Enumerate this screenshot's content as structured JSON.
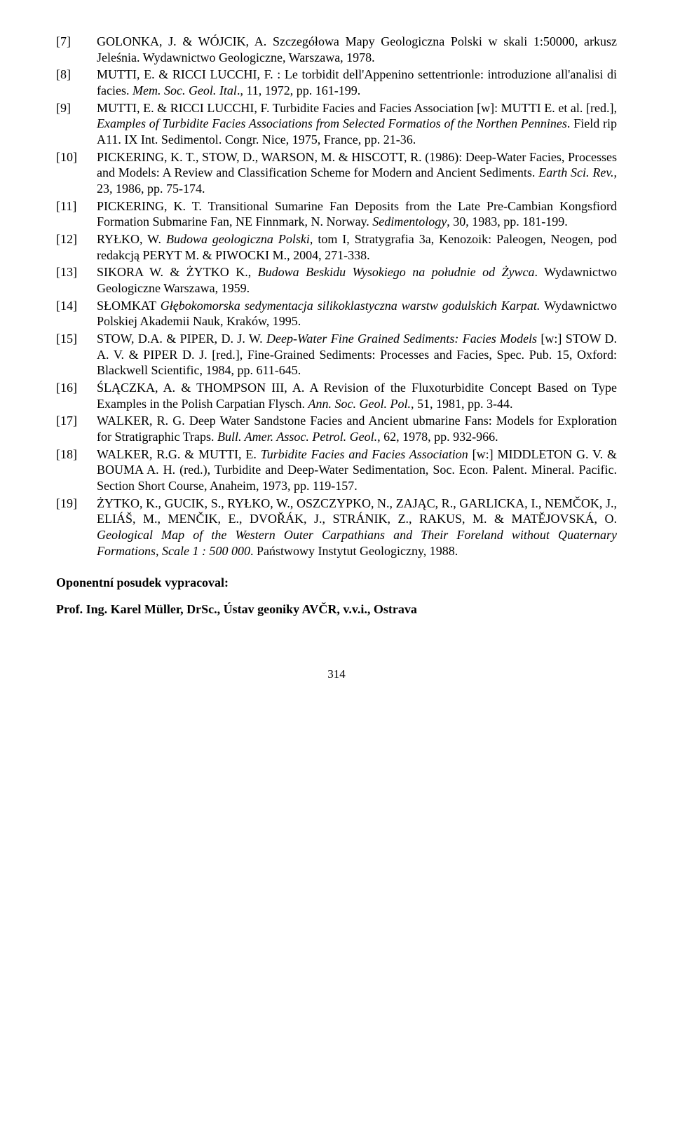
{
  "refs": [
    {
      "n": "[7]",
      "html": "GOLONKA, J. & WÓJCIK, A. Szczegółowa Mapy Geologiczna Polski w skali 1:50000, arkusz Jeleśnia. Wydawnictwo Geologiczne, Warszawa, 1978."
    },
    {
      "n": "[8]",
      "html": "MUTTI, E. & RICCI  LUCCHI, F. : Le torbidit dell'Appenino settentrionle: introduzione all'analisi di facies. <span class=\"i\">Mem. Soc. Geol. Ital</span>., 11, 1972, pp. 161-199."
    },
    {
      "n": "[9]",
      "html": "MUTTI, E. & RICCI LUCCHI, F. Turbidite Facies and Facies Association [w]: MUTTI E. et al. [red.], <span class=\"i\">Examples of Turbidite Facies Associations from Selected Formatios of the Northen Pennines</span>. Field rip A11. IX Int. Sedimentol. Congr. Nice, 1975, France, pp. 21-36."
    },
    {
      "n": "[10]",
      "html": "PICKERING, K. T., STOW, D., WARSON, M. & HISCOTT, R. (1986):  Deep-Water Facies, Processes and Models: A Review and Classification Scheme for Modern and Ancient Sediments. <span class=\"i\">Earth Sci. Rev.</span>, 23, 1986, pp. 75-174."
    },
    {
      "n": "[11]",
      "html": "PICKERING, K. T. Transitional Sumarine Fan Deposits from the Late Pre-Cambian Kongsfiord Formation Submarine Fan, NE Finnmark, N. Norway. <span class=\"i\">Sedimentology</span>, 30, 1983, pp. 181-199."
    },
    {
      "n": "[12]",
      "html": "RYŁKO, W. <span class=\"i\">Budowa geologiczna Polski</span>, tom I, Stratygrafia 3a, Kenozoik: Paleogen, Neogen, pod redakcją PERYT M. & PIWOCKI M., 2004, 271-338."
    },
    {
      "n": "[13]",
      "html": "SIKORA W. & ŻYTKO K., <span class=\"i\">Budowa Beskidu Wysokiego na południe od Żywca</span>. Wydawnictwo Geologiczne Warszawa, 1959."
    },
    {
      "n": "[14]",
      "html": "SŁOMKAT <span class=\"i\">Głębokomorska sedymentacja silikoklastyczna warstw godulskich Karpat.</span> Wydawnictwo Polskiej Akademii Nauk, Kraków, 1995."
    },
    {
      "n": "[15]",
      "html": "STOW, D.A. & PIPER, D. J. W. <span class=\"i\">Deep-Water Fine Grained Sediments: Facies Models</span> [w:] STOW D. A. V. & PIPER D. J. [red.], Fine-Grained Sediments: Processes and Facies, Spec. Pub. 15, Oxford: Blackwell Scientific, 1984, pp. 611-645."
    },
    {
      "n": "[16]",
      "html": "ŚLĄCZKA, A. & THOMPSON III, A. A Revision of the Fluxoturbidite Concept Based on Type Examples in the Polish Carpatian Flysch. <span class=\"i\">Ann. Soc. Geol. Pol.</span>, 51, 1981, pp. 3-44."
    },
    {
      "n": "[17]",
      "html": "WALKER, R. G. Deep Water Sandstone Facies and Ancient ubmarine Fans: Models for Exploration for Stratigraphic Traps. <span class=\"i\">Bull. Amer. Assoc. Petrol. Geol.</span>, 62, 1978, pp. 932-966."
    },
    {
      "n": "[18]",
      "html": "WALKER, R.G. & MUTTI, E. <span class=\"i\">Turbidite Facies and Facies Association</span> [w:] MIDDLETON G. V. & BOUMA A. H. (red.), Turbidite and Deep-Water Sedimentation, Soc. Econ. Palent. Mineral. Pacific. Section Short Course, Anaheim, 1973, pp. 119-157."
    },
    {
      "n": "[19]",
      "html": "ŻYTKO, K., GUCIK, S., RYŁKO, W., OSZCZYPKO, N., ZAJĄC, R., GARLICKA, I., NEMČOK, J., ELIÁŠ, M., MENČIK, E., DVOŘÁK, J., STRÁNIK, Z., RAKUS, M. & MATĚJOVSKÁ, O. <span class=\"i\">Geological Map of the Western Outer Carpathians and Their Foreland without Quaternary Formations, Scale 1 : 500 000</span>. Państwowy Instytut Geologiczny, 1988."
    }
  ],
  "heading": "Oponentní posudek vypracoval:",
  "prof": "Prof. Ing. Karel Müller, DrSc., Ústav geoniky AVČR, v.v.i., Ostrava",
  "page": "314"
}
